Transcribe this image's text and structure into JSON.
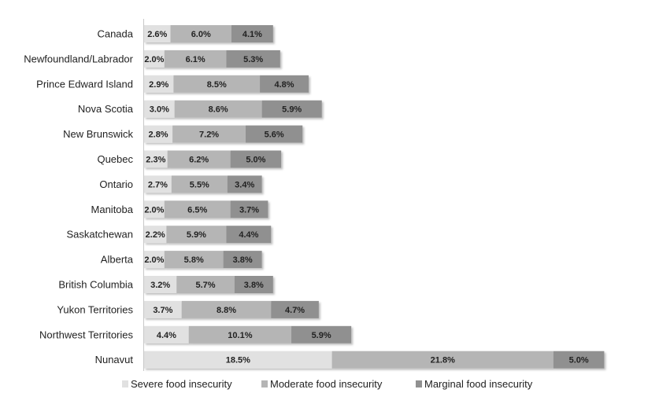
{
  "chart_data": {
    "type": "bar",
    "orientation": "horizontal",
    "stacked": true,
    "title": "",
    "xlabel": "",
    "ylabel": "",
    "xlim": [
      0,
      46
    ],
    "grid": false,
    "legend_position": "bottom",
    "categories": [
      "Canada",
      "Newfoundland/Labrador",
      "Prince Edward Island",
      "Nova Scotia",
      "New Brunswick",
      "Quebec",
      "Ontario",
      "Manitoba",
      "Saskatchewan",
      "Alberta",
      "British Columbia",
      "Yukon Territories",
      "Northwest Territories",
      "Nunavut"
    ],
    "series": [
      {
        "name": "Severe food insecurity",
        "color": "#e1e1e1",
        "values": [
          2.6,
          2.0,
          2.9,
          3.0,
          2.8,
          2.3,
          2.7,
          2.0,
          2.2,
          2.0,
          3.2,
          3.7,
          4.4,
          18.5
        ]
      },
      {
        "name": "Moderate food insecurity",
        "color": "#b5b5b5",
        "values": [
          6.0,
          6.1,
          8.5,
          8.6,
          7.2,
          6.2,
          5.5,
          6.5,
          5.9,
          5.8,
          5.7,
          8.8,
          10.1,
          21.8
        ]
      },
      {
        "name": "Marginal food insecurity",
        "color": "#909090",
        "values": [
          4.1,
          5.3,
          4.8,
          5.9,
          5.6,
          5.0,
          3.4,
          3.7,
          4.4,
          3.8,
          3.8,
          4.7,
          5.9,
          5.0
        ]
      }
    ]
  }
}
